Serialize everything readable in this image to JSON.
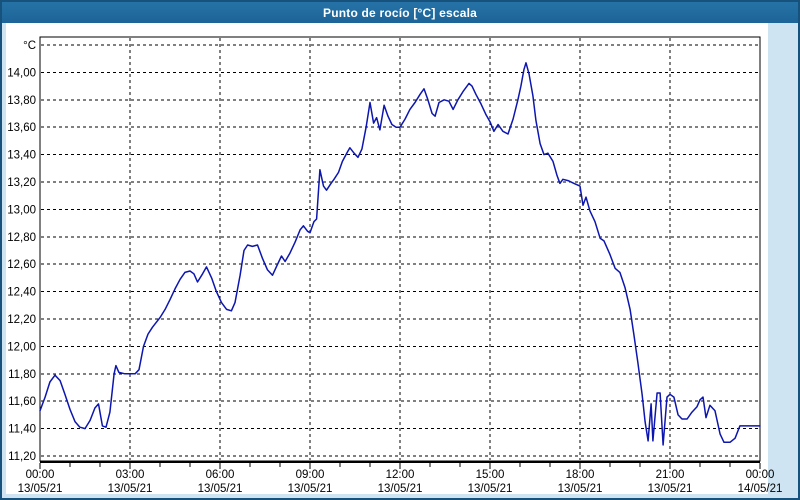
{
  "window": {
    "title": "Punto de rocío [°C] escala"
  },
  "colors": {
    "titlebar": "#1f699e",
    "outer_border": "#17527d",
    "frame": "#cfe4f2",
    "plot_bg": "#ffffff",
    "grid": "#000000",
    "axis": "#000000",
    "text": "#000000",
    "line": "#0d16ae"
  },
  "chart_data": {
    "type": "line",
    "title": "Punto de rocío [°C] escala",
    "ylabel": "°C",
    "xlabel": "",
    "grid": "dashed",
    "legend": "none",
    "decimal_separator": ",",
    "ylim": [
      11.16,
      14.26
    ],
    "xlim_hours": [
      0,
      24
    ],
    "y_tick_step": 0.2,
    "y_tick_labels": [
      "14,00",
      "13,80",
      "13,60",
      "13,40",
      "13,20",
      "13,00",
      "12,80",
      "12,60",
      "12,40",
      "12,20",
      "12,00",
      "11,80",
      "11,60",
      "11,40",
      "11,20"
    ],
    "x_minor_tick_hours": 1,
    "x_ticks": [
      {
        "hour": 0,
        "time": "00:00",
        "date": "13/05/21"
      },
      {
        "hour": 3,
        "time": "03:00",
        "date": "13/05/21"
      },
      {
        "hour": 6,
        "time": "06:00",
        "date": "13/05/21"
      },
      {
        "hour": 9,
        "time": "09:00",
        "date": "13/05/21"
      },
      {
        "hour": 12,
        "time": "12:00",
        "date": "13/05/21"
      },
      {
        "hour": 15,
        "time": "15:00",
        "date": "13/05/21"
      },
      {
        "hour": 18,
        "time": "18:00",
        "date": "13/05/21"
      },
      {
        "hour": 21,
        "time": "21:00",
        "date": "13/05/21"
      },
      {
        "hour": 24,
        "time": "00:00",
        "date": "14/05/21"
      }
    ],
    "series": [
      {
        "name": "Punto de rocío [°C]",
        "color": "#0d16ae",
        "points": [
          [
            0,
            11.53
          ],
          [
            0.17,
            11.63
          ],
          [
            0.33,
            11.74
          ],
          [
            0.5,
            11.79
          ],
          [
            0.67,
            11.75
          ],
          [
            0.83,
            11.65
          ],
          [
            1,
            11.54
          ],
          [
            1.17,
            11.45
          ],
          [
            1.33,
            11.41
          ],
          [
            1.5,
            11.4
          ],
          [
            1.67,
            11.46
          ],
          [
            1.83,
            11.55
          ],
          [
            1.95,
            11.58
          ],
          [
            2.08,
            11.42
          ],
          [
            2.2,
            11.41
          ],
          [
            2.33,
            11.52
          ],
          [
            2.47,
            11.8
          ],
          [
            2.53,
            11.86
          ],
          [
            2.63,
            11.81
          ],
          [
            2.83,
            11.8
          ],
          [
            3.17,
            11.8
          ],
          [
            3.3,
            11.83
          ],
          [
            3.45,
            12
          ],
          [
            3.6,
            12.09
          ],
          [
            3.75,
            12.14
          ],
          [
            4,
            12.21
          ],
          [
            4.17,
            12.27
          ],
          [
            4.33,
            12.34
          ],
          [
            4.5,
            12.42
          ],
          [
            4.67,
            12.49
          ],
          [
            4.83,
            12.54
          ],
          [
            5,
            12.55
          ],
          [
            5.13,
            12.53
          ],
          [
            5.25,
            12.47
          ],
          [
            5.42,
            12.53
          ],
          [
            5.55,
            12.58
          ],
          [
            5.72,
            12.5
          ],
          [
            5.88,
            12.4
          ],
          [
            6.05,
            12.32
          ],
          [
            6.22,
            12.27
          ],
          [
            6.38,
            12.26
          ],
          [
            6.5,
            12.32
          ],
          [
            6.67,
            12.52
          ],
          [
            6.8,
            12.7
          ],
          [
            6.92,
            12.74
          ],
          [
            7.08,
            12.73
          ],
          [
            7.25,
            12.74
          ],
          [
            7.42,
            12.64
          ],
          [
            7.58,
            12.56
          ],
          [
            7.75,
            12.52
          ],
          [
            7.92,
            12.6
          ],
          [
            8.05,
            12.66
          ],
          [
            8.17,
            12.62
          ],
          [
            8.33,
            12.68
          ],
          [
            8.5,
            12.76
          ],
          [
            8.67,
            12.85
          ],
          [
            8.78,
            12.88
          ],
          [
            8.92,
            12.84
          ],
          [
            9,
            12.83
          ],
          [
            9.13,
            12.91
          ],
          [
            9.22,
            12.93
          ],
          [
            9.33,
            13.29
          ],
          [
            9.45,
            13.17
          ],
          [
            9.55,
            13.14
          ],
          [
            9.7,
            13.19
          ],
          [
            9.8,
            13.22
          ],
          [
            9.95,
            13.27
          ],
          [
            10.08,
            13.35
          ],
          [
            10.25,
            13.42
          ],
          [
            10.33,
            13.45
          ],
          [
            10.47,
            13.41
          ],
          [
            10.6,
            13.38
          ],
          [
            10.73,
            13.44
          ],
          [
            10.87,
            13.6
          ],
          [
            11,
            13.78
          ],
          [
            11.12,
            13.63
          ],
          [
            11.22,
            13.67
          ],
          [
            11.33,
            13.58
          ],
          [
            11.47,
            13.76
          ],
          [
            11.6,
            13.68
          ],
          [
            11.73,
            13.62
          ],
          [
            11.87,
            13.6
          ],
          [
            12,
            13.6
          ],
          [
            12.17,
            13.66
          ],
          [
            12.33,
            13.73
          ],
          [
            12.5,
            13.78
          ],
          [
            12.67,
            13.84
          ],
          [
            12.8,
            13.88
          ],
          [
            12.93,
            13.8
          ],
          [
            13.07,
            13.7
          ],
          [
            13.17,
            13.68
          ],
          [
            13.3,
            13.78
          ],
          [
            13.47,
            13.8
          ],
          [
            13.63,
            13.79
          ],
          [
            13.77,
            13.73
          ],
          [
            13.93,
            13.8
          ],
          [
            14.1,
            13.86
          ],
          [
            14.3,
            13.92
          ],
          [
            14.4,
            13.9
          ],
          [
            14.53,
            13.84
          ],
          [
            14.7,
            13.77
          ],
          [
            14.87,
            13.69
          ],
          [
            15,
            13.64
          ],
          [
            15.13,
            13.57
          ],
          [
            15.27,
            13.62
          ],
          [
            15.43,
            13.57
          ],
          [
            15.6,
            13.55
          ],
          [
            15.77,
            13.66
          ],
          [
            15.93,
            13.8
          ],
          [
            16.03,
            13.9
          ],
          [
            16.13,
            14.02
          ],
          [
            16.2,
            14.07
          ],
          [
            16.3,
            13.99
          ],
          [
            16.43,
            13.83
          ],
          [
            16.53,
            13.65
          ],
          [
            16.67,
            13.48
          ],
          [
            16.8,
            13.4
          ],
          [
            16.93,
            13.41
          ],
          [
            17.1,
            13.35
          ],
          [
            17.23,
            13.25
          ],
          [
            17.33,
            13.19
          ],
          [
            17.43,
            13.22
          ],
          [
            17.6,
            13.21
          ],
          [
            17.8,
            13.19
          ],
          [
            18,
            13.17
          ],
          [
            18.1,
            13.03
          ],
          [
            18.2,
            13.09
          ],
          [
            18.33,
            12.99
          ],
          [
            18.5,
            12.91
          ],
          [
            18.67,
            12.79
          ],
          [
            18.8,
            12.77
          ],
          [
            19,
            12.67
          ],
          [
            19.17,
            12.57
          ],
          [
            19.33,
            12.54
          ],
          [
            19.5,
            12.43
          ],
          [
            19.67,
            12.27
          ],
          [
            19.8,
            12.08
          ],
          [
            19.93,
            11.88
          ],
          [
            20.07,
            11.65
          ],
          [
            20.17,
            11.45
          ],
          [
            20.27,
            11.31
          ],
          [
            20.37,
            11.58
          ],
          [
            20.43,
            11.31
          ],
          [
            20.57,
            11.66
          ],
          [
            20.67,
            11.66
          ],
          [
            20.77,
            11.28
          ],
          [
            20.9,
            11.63
          ],
          [
            21,
            11.65
          ],
          [
            21.13,
            11.63
          ],
          [
            21.27,
            11.5
          ],
          [
            21.4,
            11.47
          ],
          [
            21.57,
            11.47
          ],
          [
            21.73,
            11.52
          ],
          [
            21.9,
            11.56
          ],
          [
            22,
            11.61
          ],
          [
            22.1,
            11.63
          ],
          [
            22.2,
            11.48
          ],
          [
            22.33,
            11.57
          ],
          [
            22.5,
            11.53
          ],
          [
            22.67,
            11.36
          ],
          [
            22.8,
            11.3
          ],
          [
            23,
            11.3
          ],
          [
            23.17,
            11.33
          ],
          [
            23.33,
            11.42
          ],
          [
            23.67,
            11.42
          ],
          [
            24,
            11.42
          ]
        ]
      }
    ]
  }
}
